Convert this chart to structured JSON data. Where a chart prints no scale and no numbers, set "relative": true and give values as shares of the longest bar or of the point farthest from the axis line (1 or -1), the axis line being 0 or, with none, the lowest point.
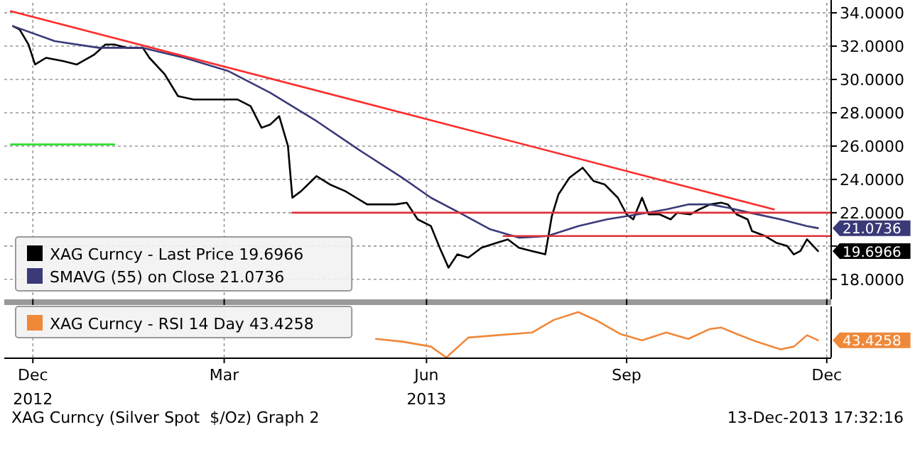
{
  "chart_data": [
    {
      "type": "line",
      "xlim": [
        "2012-12-08",
        "2013-12-19"
      ],
      "ylim": [
        16.8,
        34.6
      ],
      "yticks": [
        {
          "value": 18,
          "label": "18.0000"
        },
        {
          "value": 20,
          "label": null
        },
        {
          "value": 22,
          "label": "22.0000"
        },
        {
          "value": 24,
          "label": "24.0000"
        },
        {
          "value": 26,
          "label": "26.0000"
        },
        {
          "value": 28,
          "label": "28.0000"
        },
        {
          "value": 30,
          "label": "30.0000"
        },
        {
          "value": 32,
          "label": "32.0000"
        },
        {
          "value": 34,
          "label": "34.0000"
        }
      ],
      "xticks": [
        {
          "value": "2012-12-21",
          "label": "2012"
        },
        {
          "value": "2013-03-18",
          "label": null
        },
        {
          "value": "2013-06-18",
          "label": "2013"
        },
        {
          "value": "2013-09-17",
          "label": null
        },
        {
          "value": "2013-12-17",
          "label": null
        }
      ],
      "grid": true,
      "legend": "bottom left",
      "series": [
        {
          "name": "XAG Curncy - Last Price 19.6966",
          "color": "#000000",
          "x": [
            "2012-12-12",
            "2012-12-15",
            "2012-12-19",
            "2012-12-22",
            "2012-12-27",
            "2013-01-04",
            "2013-01-10",
            "2013-01-18",
            "2013-01-23",
            "2013-01-27",
            "2013-02-02",
            "2013-02-09",
            "2013-02-12",
            "2013-02-19",
            "2013-02-25",
            "2013-03-04",
            "2013-03-14",
            "2013-03-24",
            "2013-03-30",
            "2013-04-04",
            "2013-04-08",
            "2013-04-12",
            "2013-04-16",
            "2013-04-18",
            "2013-04-22",
            "2013-04-29",
            "2013-05-05",
            "2013-05-12",
            "2013-05-17",
            "2013-05-22",
            "2013-05-28",
            "2013-06-04",
            "2013-06-09",
            "2013-06-14",
            "2013-06-20",
            "2013-06-24",
            "2013-06-28",
            "2013-07-02",
            "2013-07-07",
            "2013-07-13",
            "2013-07-20",
            "2013-07-25",
            "2013-07-30",
            "2013-08-05",
            "2013-08-11",
            "2013-08-14",
            "2013-08-17",
            "2013-08-22",
            "2013-08-28",
            "2013-09-02",
            "2013-09-07",
            "2013-09-13",
            "2013-09-17",
            "2013-09-20",
            "2013-09-24",
            "2013-09-27",
            "2013-10-02",
            "2013-10-07",
            "2013-10-10",
            "2013-10-16",
            "2013-10-20",
            "2013-10-25",
            "2013-10-30",
            "2013-11-02",
            "2013-11-06",
            "2013-11-11",
            "2013-11-13",
            "2013-11-19",
            "2013-11-24",
            "2013-11-29",
            "2013-12-02",
            "2013-12-05",
            "2013-12-08",
            "2013-12-13"
          ],
          "values": [
            33.2,
            33.0,
            32.1,
            30.9,
            31.3,
            31.1,
            30.9,
            31.5,
            32.1,
            32.1,
            31.9,
            31.9,
            31.3,
            30.3,
            29.0,
            28.8,
            28.8,
            28.8,
            28.4,
            27.1,
            27.3,
            27.8,
            26.0,
            22.9,
            23.3,
            24.2,
            23.7,
            23.3,
            22.9,
            22.5,
            22.5,
            22.5,
            22.6,
            21.6,
            21.2,
            19.9,
            18.7,
            19.5,
            19.3,
            19.9,
            20.2,
            20.4,
            19.9,
            19.7,
            19.5,
            21.8,
            23.1,
            24.1,
            24.7,
            23.9,
            23.7,
            22.9,
            21.9,
            21.6,
            22.9,
            21.9,
            21.9,
            21.6,
            22.0,
            21.9,
            22.2,
            22.5,
            22.6,
            22.5,
            21.9,
            21.6,
            20.9,
            20.6,
            20.2,
            20.0,
            19.5,
            19.7,
            20.4,
            19.6966
          ],
          "value_labels": [
            null,
            null,
            null,
            null,
            null,
            null,
            null,
            null,
            null,
            null,
            null,
            null,
            null,
            null,
            null,
            null,
            null,
            null,
            null,
            null,
            null,
            null,
            null,
            null,
            null,
            null,
            null,
            null,
            null,
            null,
            null,
            null,
            null,
            null,
            null,
            null,
            null,
            null,
            null,
            null,
            null,
            null,
            null,
            null,
            null,
            null,
            null,
            null,
            null,
            null,
            null,
            null,
            null,
            null,
            null,
            null,
            null,
            null,
            null,
            null,
            null,
            null,
            null,
            null,
            null,
            null,
            null,
            null,
            null,
            null,
            null,
            null,
            null,
            "19.6966"
          ]
        },
        {
          "name": "SMAVG (55) on Close 21.0736",
          "color": "#3a3a78",
          "x": [
            "2012-12-12",
            "2012-12-31",
            "2013-01-20",
            "2013-02-09",
            "2013-02-28",
            "2013-03-20",
            "2013-04-08",
            "2013-04-29",
            "2013-05-18",
            "2013-06-07",
            "2013-06-20",
            "2013-07-03",
            "2013-07-17",
            "2013-07-30",
            "2013-08-12",
            "2013-08-26",
            "2013-09-08",
            "2013-09-22",
            "2013-10-05",
            "2013-10-15",
            "2013-10-25",
            "2013-11-02",
            "2013-11-12",
            "2013-11-26",
            "2013-12-08",
            "2013-12-13"
          ],
          "values": [
            33.2,
            32.3,
            31.9,
            31.9,
            31.3,
            30.5,
            29.2,
            27.5,
            25.8,
            24.1,
            22.9,
            22.0,
            21.0,
            20.5,
            20.6,
            21.2,
            21.6,
            21.9,
            22.2,
            22.5,
            22.5,
            22.3,
            22.0,
            21.6,
            21.2,
            21.0736
          ],
          "value_labels": [
            null,
            null,
            null,
            null,
            null,
            null,
            null,
            null,
            null,
            null,
            null,
            null,
            null,
            null,
            null,
            null,
            null,
            null,
            null,
            null,
            null,
            null,
            null,
            null,
            null,
            "21.0736"
          ]
        },
        {
          "color": "#ff2b2b",
          "x": [
            "2012-12-11",
            "2013-11-23"
          ],
          "values": [
            34.1,
            22.2
          ]
        },
        {
          "color": "#e0303a",
          "x": [
            "2013-04-18",
            "2013-12-19"
          ],
          "values": [
            22.0,
            22.0
          ]
        },
        {
          "color": "#e0303a",
          "x": [
            "2013-07-23",
            "2013-12-19"
          ],
          "values": [
            20.6,
            20.6
          ]
        },
        {
          "color": "#33dd33",
          "x": [
            "2012-12-11",
            "2013-01-27"
          ],
          "values": [
            26.1,
            26.1
          ]
        }
      ]
    },
    {
      "type": "line",
      "relative": true,
      "xlim": [
        "2012-12-08",
        "2013-12-19"
      ],
      "xticks": [
        {
          "value": "2012-12-21",
          "label": "Dec"
        },
        {
          "value": "2013-03-18",
          "label": "Mar"
        },
        {
          "value": "2013-06-18",
          "label": "Jun"
        },
        {
          "value": "2013-09-17",
          "label": "Sep"
        },
        {
          "value": "2013-12-17",
          "label": "Dec"
        }
      ],
      "grid": "x",
      "legend": "top left",
      "series": [
        {
          "name": "XAG Curncy - RSI 14 Day 43.4258",
          "color": "#f0883a",
          "x": [
            "2013-05-26",
            "2013-06-07",
            "2013-06-20",
            "2013-06-27",
            "2013-07-07",
            "2013-07-20",
            "2013-08-05",
            "2013-08-15",
            "2013-08-26",
            "2013-09-04",
            "2013-09-14",
            "2013-09-24",
            "2013-10-05",
            "2013-10-15",
            "2013-10-25",
            "2013-10-30",
            "2013-11-06",
            "2013-11-15",
            "2013-11-26",
            "2013-12-02",
            "2013-12-08",
            "2013-12-13"
          ],
          "values": [
            0.41,
            0.35,
            0.24,
            0,
            0.44,
            0.49,
            0.55,
            0.83,
            1,
            0.8,
            0.52,
            0.38,
            0.55,
            0.41,
            0.63,
            0.66,
            0.52,
            0.35,
            0.18,
            0.24,
            0.49,
            0.38
          ]
        }
      ],
      "annotations": [
        {
          "text": "43.4258",
          "x": "2013-12-13",
          "y": 0.38
        },
        "XAG Curncy (Silver Spot  $/Oz) Graph 2",
        "13-Dec-2013 17:32:16"
      ]
    }
  ]
}
